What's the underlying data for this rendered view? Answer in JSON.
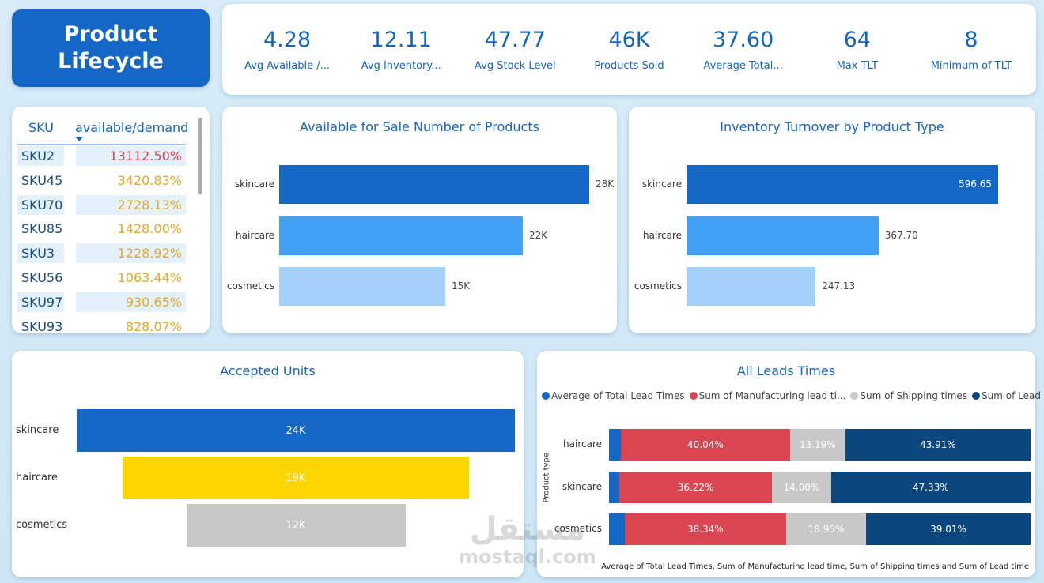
{
  "title": "Product Lifecycle",
  "kpis": [
    {
      "value": "4.28",
      "label": "Avg Available /..."
    },
    {
      "value": "12.11",
      "label": "Avg Inventory..."
    },
    {
      "value": "47.77",
      "label": "Avg Stock Level"
    },
    {
      "value": "46K",
      "label": "Products Sold"
    },
    {
      "value": "37.60",
      "label": "Average Total..."
    },
    {
      "value": "64",
      "label": "Max TLT"
    },
    {
      "value": "8",
      "label": "Minimum of TLT"
    }
  ],
  "sku_table": {
    "headers": [
      "SKU",
      "available/demand"
    ],
    "rows": [
      {
        "sku": "SKU2",
        "value": "13112.50%",
        "color": "#d9434f"
      },
      {
        "sku": "SKU45",
        "value": "3420.83%",
        "color": "#e3a82a"
      },
      {
        "sku": "SKU70",
        "value": "2728.13%",
        "color": "#e3a82a"
      },
      {
        "sku": "SKU85",
        "value": "1428.00%",
        "color": "#e3a82a"
      },
      {
        "sku": "SKU3",
        "value": "1228.92%",
        "color": "#e3a82a"
      },
      {
        "sku": "SKU56",
        "value": "1063.44%",
        "color": "#e3a82a"
      },
      {
        "sku": "SKU97",
        "value": "930.65%",
        "color": "#e3a82a"
      },
      {
        "sku": "SKU93",
        "value": "828.07%",
        "color": "#e3a82a"
      }
    ]
  },
  "chart_data": [
    {
      "type": "bar",
      "title": "Available for Sale Number of Products",
      "categories": [
        "skincare",
        "haircare",
        "cosmetics"
      ],
      "values": [
        28000,
        22000,
        15000
      ],
      "labels": [
        "28K",
        "22K",
        "15K"
      ],
      "colors": [
        "#1467c4",
        "#41a2f5",
        "#a3d1fc"
      ]
    },
    {
      "type": "bar",
      "title": "Inventory Turnover by Product Type",
      "categories": [
        "skincare",
        "haircare",
        "cosmetics"
      ],
      "values": [
        596.65,
        367.7,
        247.13
      ],
      "labels": [
        "596.65",
        "367.70",
        "247.13"
      ],
      "colors": [
        "#1467c4",
        "#41a2f5",
        "#a3d1fc"
      ]
    },
    {
      "type": "bar",
      "subtype": "funnel",
      "title": "Accepted Units",
      "categories": [
        "skincare",
        "haircare",
        "cosmetics"
      ],
      "values": [
        24000,
        19000,
        12000
      ],
      "labels": [
        "24K",
        "19K",
        "12K"
      ],
      "colors": [
        "#1467c4",
        "#fdd600",
        "#c8c8c8"
      ]
    },
    {
      "type": "bar",
      "subtype": "100% stacked",
      "title": "All Leads Times",
      "ylabel": "Product type",
      "xlabel": "Average of Total Lead Times, Sum of Manufacturing lead time, Sum of Shipping times and Sum of Lead time",
      "legend_position": "top-left",
      "categories": [
        "haircare",
        "skincare",
        "cosmetics"
      ],
      "series": [
        {
          "name": "Average of Total Lead Times",
          "color": "#1467c4",
          "values": [
            2.86,
            2.45,
            3.7
          ],
          "labels": [
            "",
            "",
            ""
          ]
        },
        {
          "name": "Sum of Manufacturing lead ti...",
          "color": "#d94550",
          "values": [
            40.04,
            36.22,
            38.34
          ],
          "labels": [
            "40.04%",
            "36.22%",
            "38.34%"
          ]
        },
        {
          "name": "Sum of Shipping times",
          "color": "#c8c8c8",
          "values": [
            13.19,
            14.0,
            18.95
          ],
          "labels": [
            "13.19%",
            "14.00%",
            "18.95%"
          ]
        },
        {
          "name": "Sum of Lead time",
          "color": "#0b467f",
          "values": [
            43.91,
            47.33,
            39.01
          ],
          "labels": [
            "43.91%",
            "47.33%",
            "39.01%"
          ]
        }
      ]
    }
  ],
  "watermark": {
    "arabic": "مستقل",
    "latin": "mostaql.com"
  }
}
